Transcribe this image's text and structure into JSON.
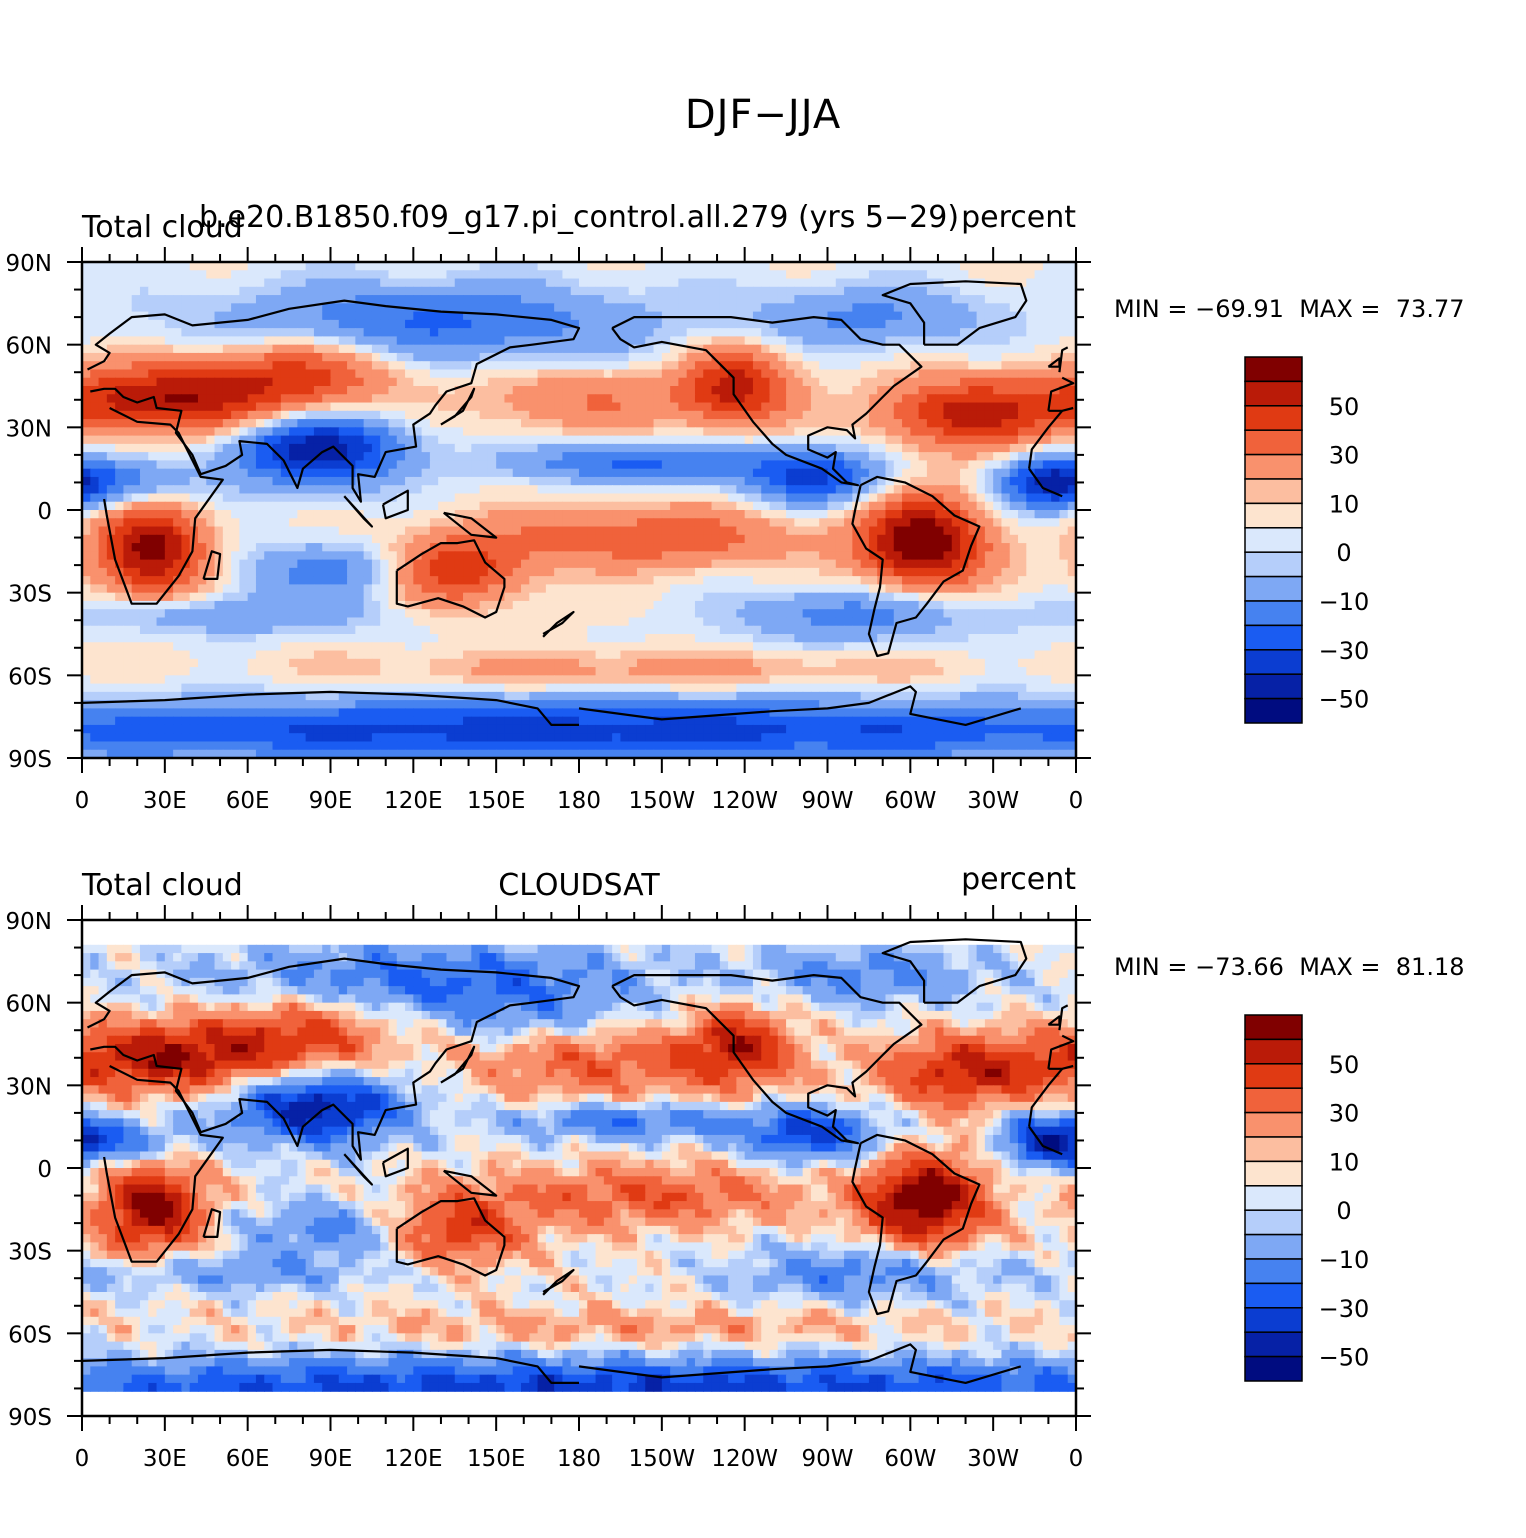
{
  "figure": {
    "title": "DJF−JJA"
  },
  "colors": {
    "levels": [
      "#000c80",
      "#0621a6",
      "#0b3dd1",
      "#1a5cf2",
      "#4682f0",
      "#7ea8f4",
      "#b5cefa",
      "#dae8fc",
      "#fde4cf",
      "#fcbea0",
      "#f9916d",
      "#f0623b",
      "#e03a13",
      "#ba1b08",
      "#800000"
    ],
    "coast": "#000000"
  },
  "chart_data": [
    {
      "type": "heatmap",
      "left_label": "Total cloud",
      "center_label": "b.e20.B1850.f09_g17.pi_control.all.279 (yrs 5−29)",
      "right_label": "percent",
      "stats": {
        "min_label": "MIN = ",
        "min": "−69.91",
        "max_label": "MAX = ",
        "max": "73.77"
      },
      "x_ticks": [
        "0",
        "30E",
        "60E",
        "90E",
        "120E",
        "150E",
        "180",
        "150W",
        "120W",
        "90W",
        "60W",
        "30W",
        "0"
      ],
      "y_ticks": [
        "90N",
        "60N",
        "30N",
        "0",
        "30S",
        "60S",
        "90S"
      ],
      "xlim": [
        0,
        360
      ],
      "ylim": [
        -90,
        90
      ],
      "colorbar_labels": [
        "50",
        "30",
        "10",
        "0",
        "−10",
        "−30",
        "−50"
      ],
      "contour_levels": [
        -60,
        -50,
        -40,
        -30,
        -20,
        -10,
        -5,
        0,
        5,
        10,
        20,
        30,
        40,
        50,
        60
      ],
      "data_lat_range": [
        -90,
        90
      ]
    },
    {
      "type": "heatmap",
      "left_label": "Total cloud",
      "center_label": "CLOUDSAT",
      "right_label": "percent",
      "stats": {
        "min_label": "MIN = ",
        "min": "−73.66",
        "max_label": "MAX = ",
        "max": "81.18"
      },
      "x_ticks": [
        "0",
        "30E",
        "60E",
        "90E",
        "120E",
        "150E",
        "180",
        "150W",
        "120W",
        "90W",
        "60W",
        "30W",
        "0"
      ],
      "y_ticks": [
        "90N",
        "60N",
        "30N",
        "0",
        "30S",
        "60S",
        "90S"
      ],
      "xlim": [
        0,
        360
      ],
      "ylim": [
        -90,
        90
      ],
      "colorbar_labels": [
        "50",
        "30",
        "10",
        "0",
        "−10",
        "−30",
        "−50"
      ],
      "contour_levels": [
        -60,
        -50,
        -40,
        -30,
        -20,
        -10,
        -5,
        0,
        5,
        10,
        20,
        30,
        40,
        50,
        60
      ],
      "data_lat_range": [
        -82,
        82
      ]
    }
  ]
}
